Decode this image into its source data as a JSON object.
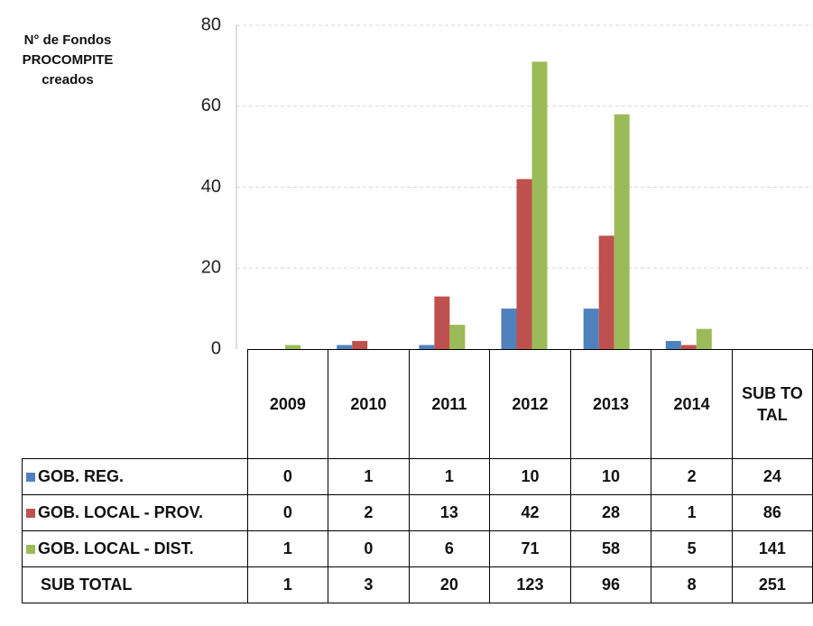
{
  "chart_data": {
    "type": "bar",
    "y_axis_label": "N° de Fondos PROCOMPITE creados",
    "categories": [
      "2009",
      "2010",
      "2011",
      "2012",
      "2013",
      "2014"
    ],
    "total_label": "SUB TOTAL",
    "series": [
      {
        "name": "GOB. REG.",
        "color": "#4f81bd",
        "values": [
          0,
          1,
          1,
          10,
          10,
          2
        ],
        "total": 24
      },
      {
        "name": "GOB. LOCAL - PROV.",
        "color": "#c0504d",
        "values": [
          0,
          2,
          13,
          42,
          28,
          1
        ],
        "total": 86
      },
      {
        "name": "GOB. LOCAL - DIST.",
        "color": "#9bbb59",
        "values": [
          1,
          0,
          6,
          71,
          58,
          5
        ],
        "total": 141
      }
    ],
    "subtotal_row": {
      "name": "SUB TOTAL",
      "values": [
        1,
        3,
        20,
        123,
        96,
        8
      ],
      "total": 251
    },
    "ylim": [
      0,
      80
    ],
    "yticks": [
      0,
      20,
      40,
      60,
      80
    ],
    "grid": true
  }
}
